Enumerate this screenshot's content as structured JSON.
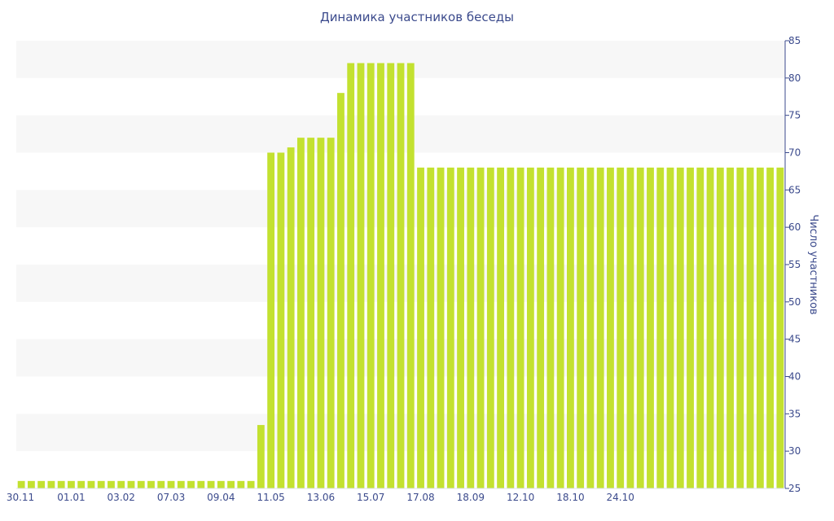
{
  "chart_data": {
    "type": "bar",
    "title": "Динамика участников беседы",
    "ylabel": "Число участников",
    "xlabel": "",
    "ylim": [
      25,
      85
    ],
    "yticks": [
      25,
      30,
      35,
      40,
      45,
      50,
      55,
      60,
      65,
      70,
      75,
      80,
      85
    ],
    "y_axis_side": "right",
    "grid": "alternating horizontal bands",
    "legend": "none",
    "bar_color": "#c3e130",
    "band_color": "#f7f7f7",
    "text_color": "#3b4a8c",
    "x_tick_labels": [
      "30.11",
      "01.01",
      "03.02",
      "07.03",
      "09.04",
      "11.05",
      "13.06",
      "15.07",
      "17.08",
      "18.09",
      "12.10",
      "18.10",
      "24.10"
    ],
    "x_tick_bar_index": [
      0,
      5,
      10,
      15,
      20,
      25,
      30,
      35,
      40,
      45,
      50,
      55,
      60
    ],
    "values": [
      26,
      26,
      26,
      26,
      26,
      26,
      26,
      26,
      26,
      26,
      26,
      26,
      26,
      26,
      26,
      26,
      26,
      26,
      26,
      26,
      26,
      26,
      26,
      26,
      33.5,
      70,
      70,
      70.7,
      72,
      72,
      72,
      72,
      78,
      82,
      82,
      82,
      82,
      82,
      82,
      82,
      68,
      68,
      68,
      68,
      68,
      68,
      68,
      68,
      68,
      68,
      68,
      68,
      68,
      68,
      68,
      68,
      68,
      68,
      68,
      68,
      68,
      68,
      68,
      68,
      68,
      68,
      68,
      68,
      68,
      68,
      68,
      68,
      68,
      68,
      68,
      68,
      68
    ]
  }
}
